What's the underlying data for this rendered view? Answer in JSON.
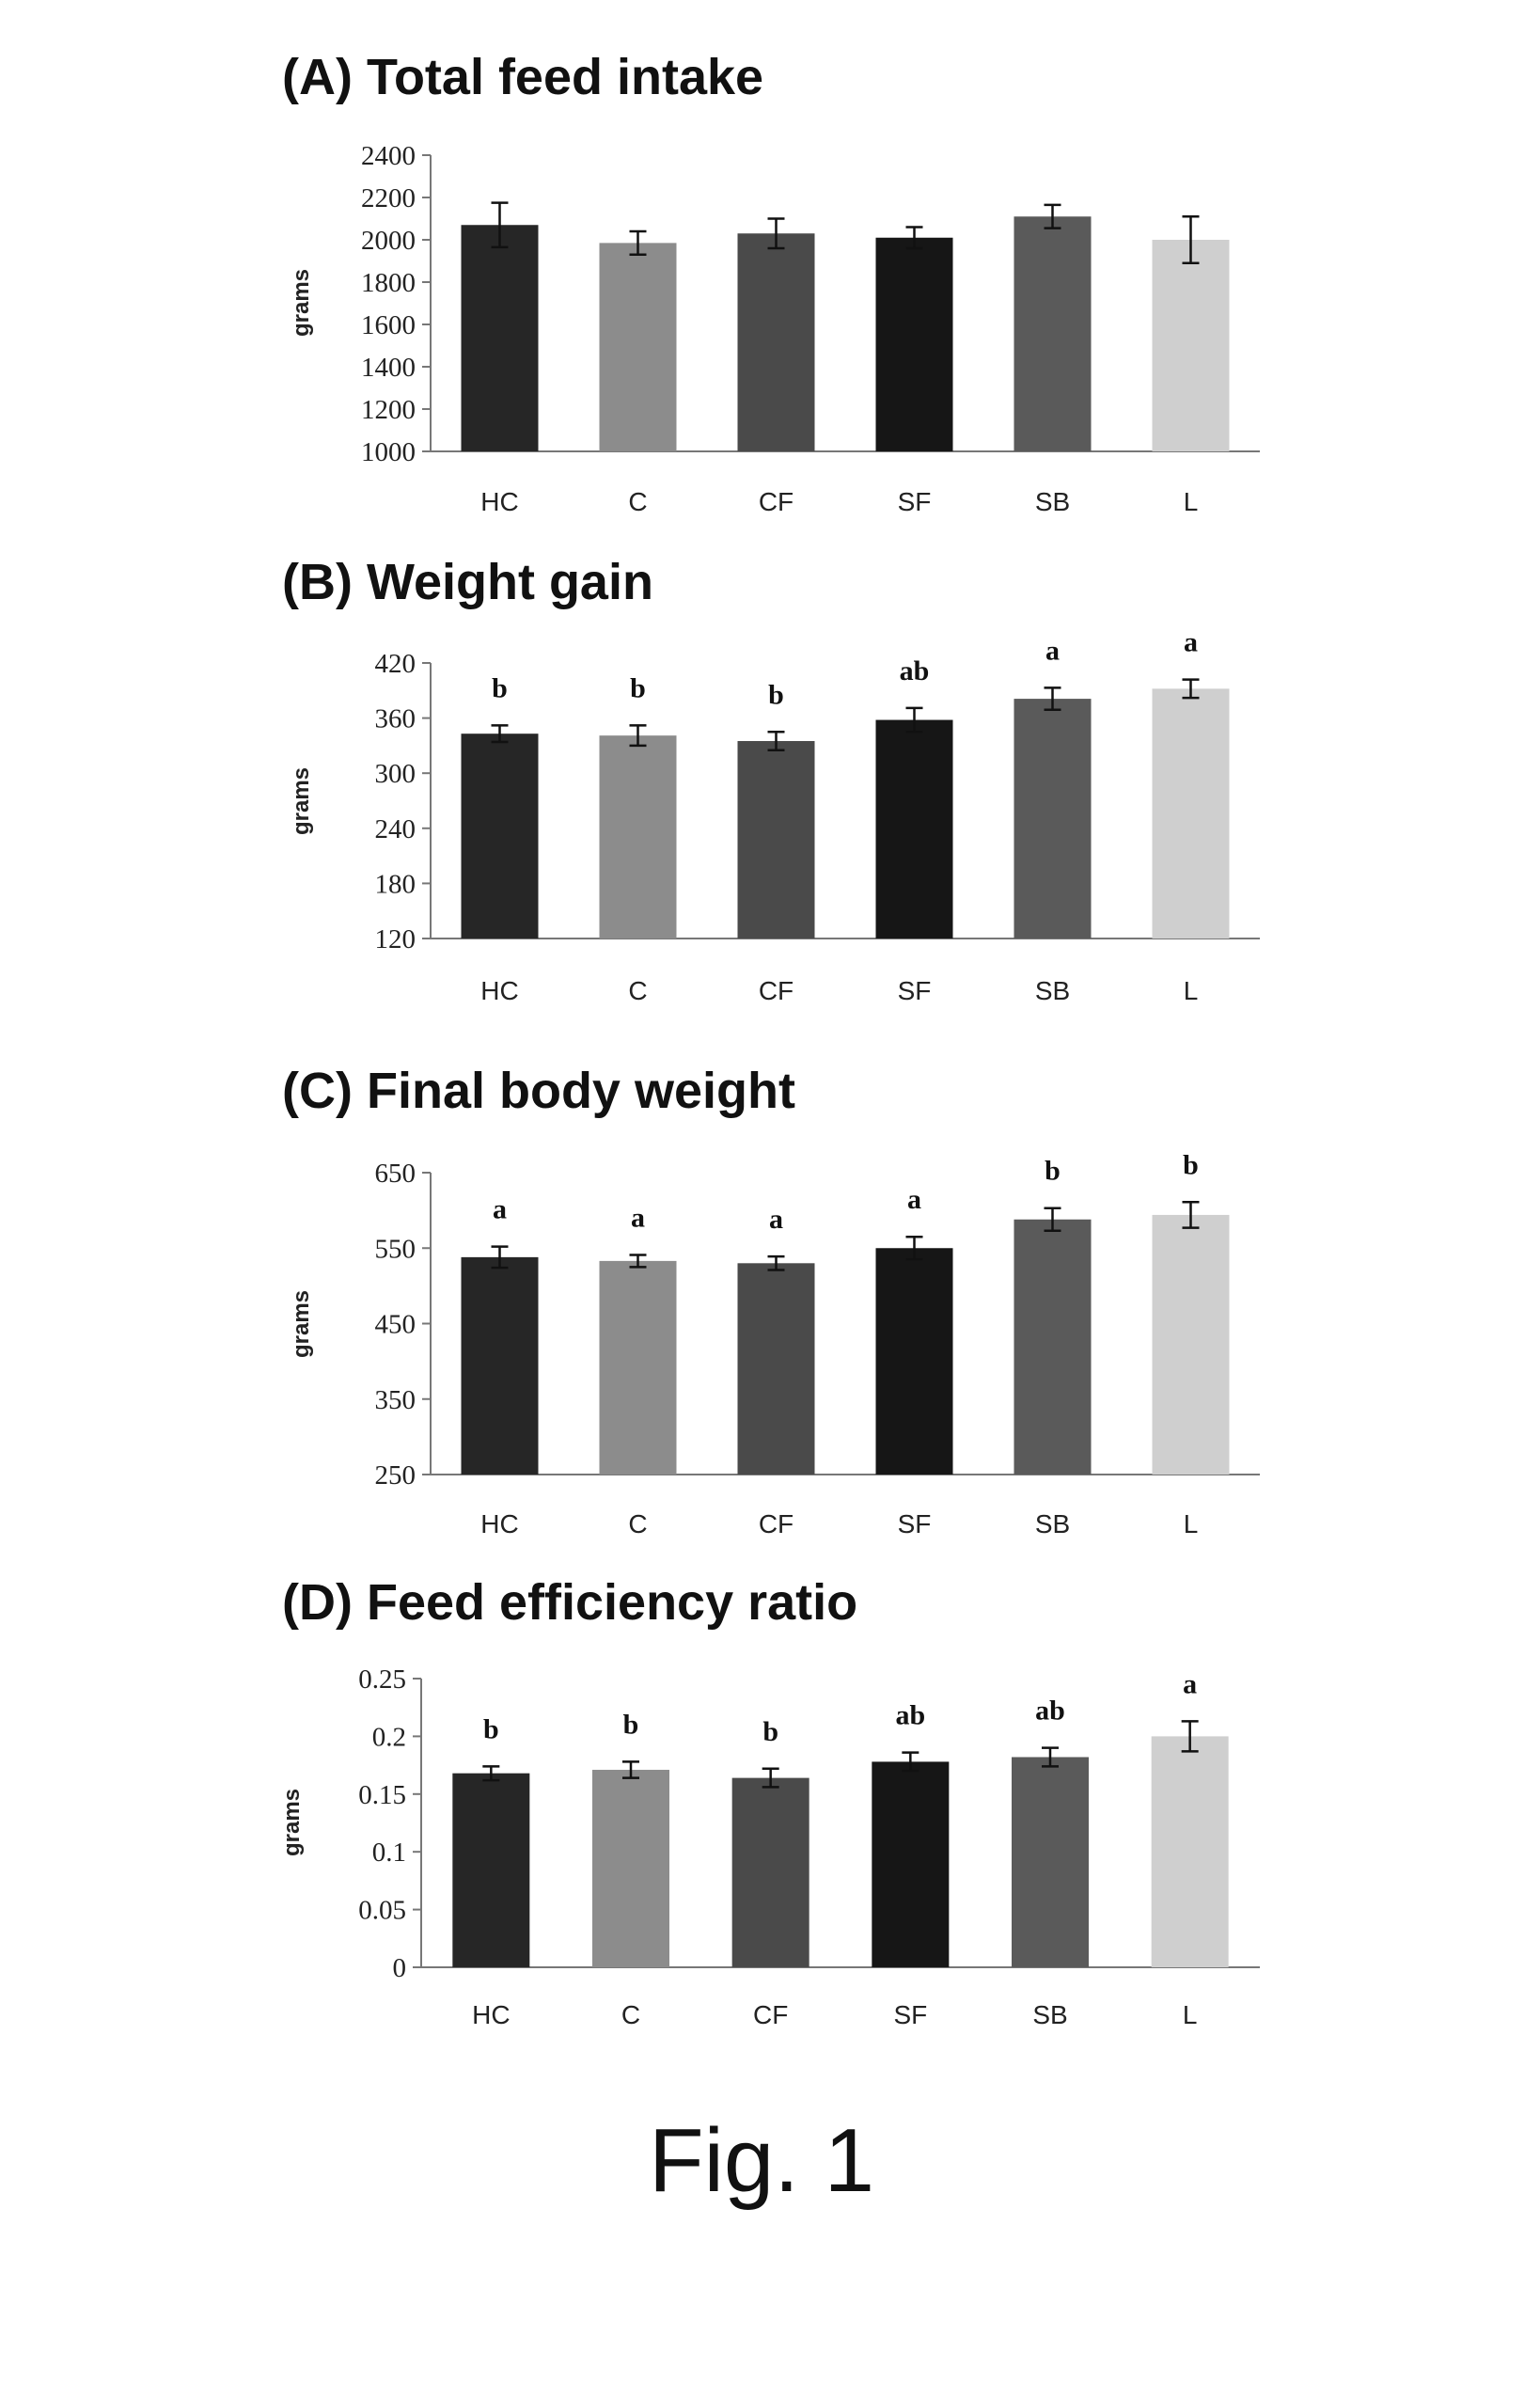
{
  "figure_caption": "Fig. 1",
  "colors": {
    "HC": "#262626",
    "C": "#8c8c8c",
    "CF": "#4a4a4a",
    "SF": "#161616",
    "SB": "#5a5a5a",
    "L": "#cfcfcf",
    "axis": "#777777",
    "errorbar": "#111111"
  },
  "chart_data": [
    {
      "type": "bar",
      "title": "(A) Total feed intake",
      "ylabel": "grams",
      "xlabel": "",
      "categories": [
        "HC",
        "C",
        "CF",
        "SF",
        "SB",
        "L"
      ],
      "values": [
        2070,
        1985,
        2030,
        2010,
        2110,
        2000
      ],
      "errors": [
        105,
        55,
        70,
        50,
        55,
        110
      ],
      "significance": [
        "",
        "",
        "",
        "",
        "",
        ""
      ],
      "ylim": [
        1000,
        2400
      ],
      "yticks": [
        1000,
        1200,
        1400,
        1600,
        1800,
        2000,
        2200,
        2400
      ],
      "ytick_labels": [
        "1000",
        "1200",
        "1400",
        "1600",
        "1800",
        "2000",
        "2200",
        "2400"
      ],
      "grid": false
    },
    {
      "type": "bar",
      "title": "(B) Weight gain",
      "ylabel": "grams",
      "xlabel": "",
      "categories": [
        "HC",
        "C",
        "CF",
        "SF",
        "SB",
        "L"
      ],
      "values": [
        343,
        341,
        335,
        358,
        381,
        392
      ],
      "errors": [
        9,
        11,
        10,
        13,
        12,
        10
      ],
      "significance": [
        "b",
        "b",
        "b",
        "ab",
        "a",
        "a"
      ],
      "ylim": [
        120,
        420
      ],
      "yticks": [
        120,
        180,
        240,
        300,
        360,
        420
      ],
      "ytick_labels": [
        "120",
        "180",
        "240",
        "300",
        "360",
        "420"
      ],
      "grid": false
    },
    {
      "type": "bar",
      "title": "(C) Final body weight",
      "ylabel": "grams",
      "xlabel": "",
      "categories": [
        "HC",
        "C",
        "CF",
        "SF",
        "SB",
        "L"
      ],
      "values": [
        538,
        533,
        530,
        550,
        588,
        594
      ],
      "errors": [
        14,
        8,
        9,
        15,
        15,
        17
      ],
      "significance": [
        "a",
        "a",
        "a",
        "a",
        "b",
        "b"
      ],
      "ylim": [
        250,
        650
      ],
      "yticks": [
        250,
        350,
        450,
        550,
        650
      ],
      "ytick_labels": [
        "250",
        "350",
        "450",
        "550",
        "650"
      ],
      "grid": false
    },
    {
      "type": "bar",
      "title": "(D) Feed efficiency ratio",
      "ylabel": "grams",
      "xlabel": "",
      "categories": [
        "HC",
        "C",
        "CF",
        "SF",
        "SB",
        "L"
      ],
      "values": [
        0.168,
        0.171,
        0.164,
        0.178,
        0.182,
        0.2
      ],
      "errors": [
        0.006,
        0.007,
        0.008,
        0.008,
        0.008,
        0.013
      ],
      "significance": [
        "b",
        "b",
        "b",
        "ab",
        "ab",
        "a"
      ],
      "ylim": [
        0,
        0.25
      ],
      "yticks": [
        0,
        0.05,
        0.1,
        0.15,
        0.2,
        0.25
      ],
      "ytick_labels": [
        "0",
        "0.05",
        "0.1",
        "0.15",
        "0.2",
        "0.25"
      ],
      "grid": false
    }
  ]
}
